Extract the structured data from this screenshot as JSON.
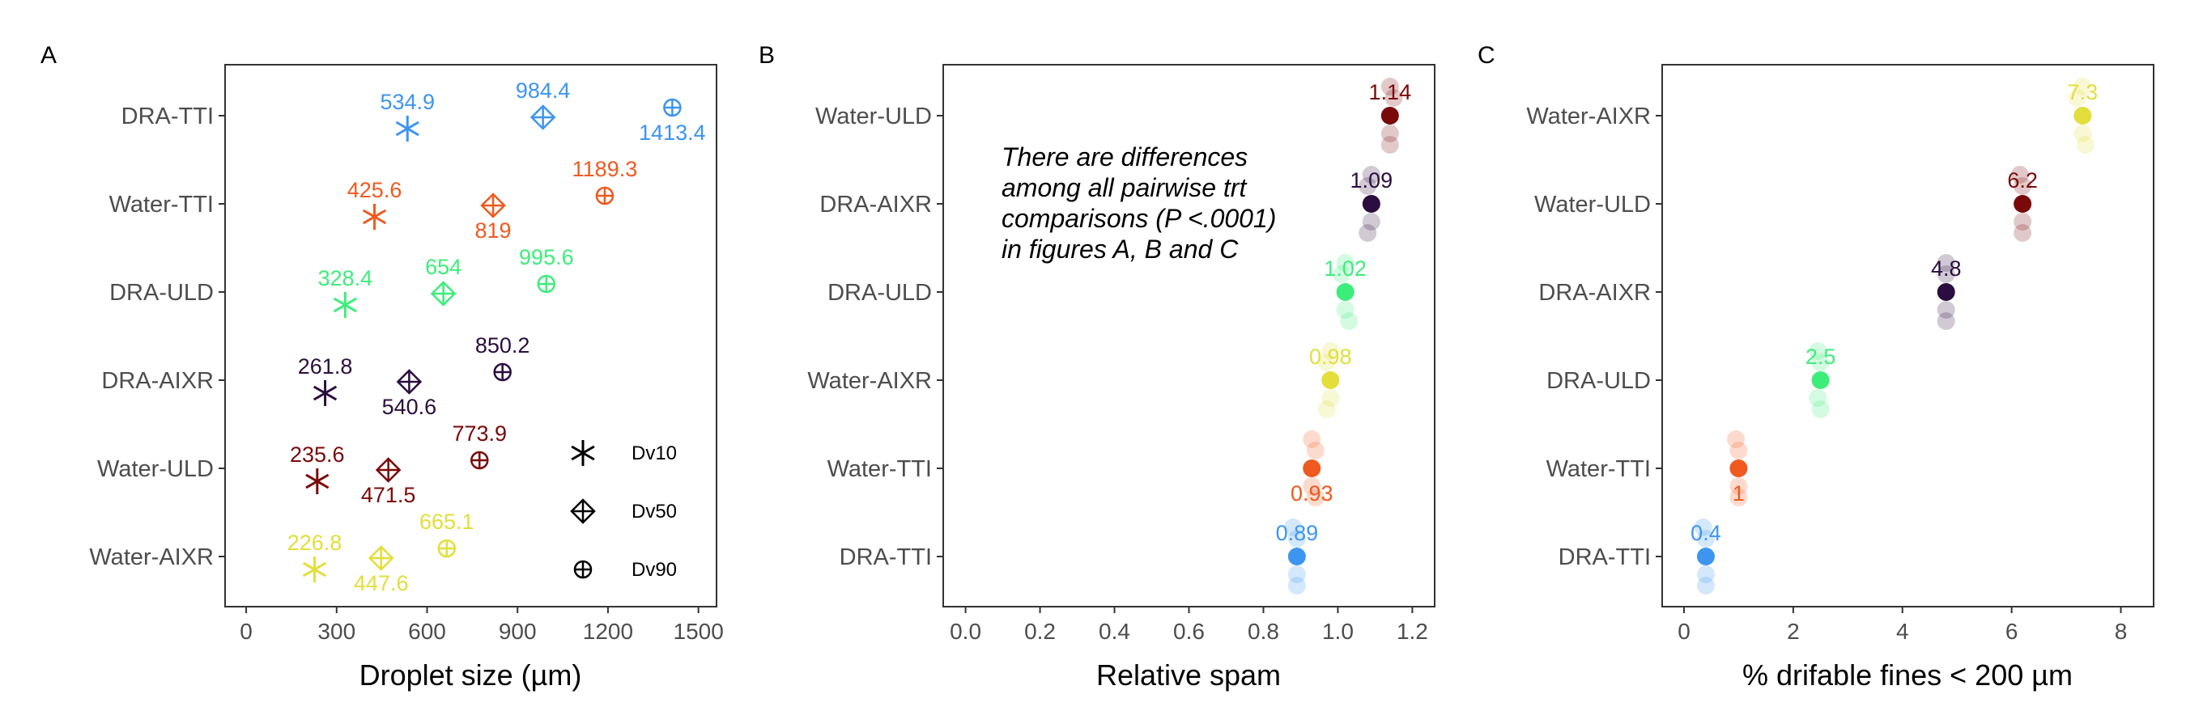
{
  "colors": {
    "DRA-TTI": "#3d95f0",
    "Water-TTI": "#f0591f",
    "DRA-ULD": "#3ded7a",
    "DRA-AIXR": "#2c0d3f",
    "Water-ULD": "#7a0a0a",
    "Water-AIXR": "#e3de3a"
  },
  "panels": [
    "A",
    "B",
    "C"
  ],
  "note": [
    "There are differences",
    "among all pairwise trt",
    "comparisons (P <.0001)",
    "in figures A, B and C"
  ],
  "chart_data": [
    {
      "panel": "A",
      "type": "scatter",
      "xlabel": "Droplet size (µm)",
      "xlim": [
        -70,
        1560
      ],
      "xticks": [
        0,
        300,
        600,
        900,
        1200,
        1500
      ],
      "categories": [
        "DRA-TTI",
        "Water-TTI",
        "DRA-ULD",
        "DRA-AIXR",
        "Water-ULD",
        "Water-AIXR"
      ],
      "series": [
        {
          "name": "Dv10",
          "symbol": "asterisk",
          "values": [
            534.9,
            425.6,
            328.4,
            261.8,
            235.6,
            226.8
          ],
          "labels": [
            "534.9",
            "425.6",
            "328.4",
            "261.8",
            "235.6",
            "226.8"
          ]
        },
        {
          "name": "Dv50",
          "symbol": "diamond-plus",
          "values": [
            984.4,
            819,
            654,
            540.6,
            471.5,
            447.6
          ],
          "labels": [
            "984.4",
            "819",
            "654",
            "540.6",
            "471.5",
            "447.6"
          ]
        },
        {
          "name": "Dv90",
          "symbol": "circle-plus",
          "values": [
            1413.4,
            1189.3,
            995.6,
            850.2,
            773.9,
            665.1
          ],
          "labels": [
            "1413.4",
            "1189.3",
            "995.6",
            "850.2",
            "773.9",
            "665.1"
          ]
        }
      ],
      "legend": [
        "Dv10",
        "Dv50",
        "Dv90"
      ],
      "grid": false
    },
    {
      "panel": "B",
      "type": "scatter",
      "xlabel": "Relative spam",
      "xlim": [
        -0.06,
        1.26
      ],
      "xticks": [
        0.0,
        0.2,
        0.4,
        0.6,
        0.8,
        1.0,
        1.2
      ],
      "xtick_labels": [
        "0.0",
        "0.2",
        "0.4",
        "0.6",
        "0.8",
        "1.0",
        "1.2"
      ],
      "categories": [
        "Water-ULD",
        "DRA-AIXR",
        "DRA-ULD",
        "Water-AIXR",
        "Water-TTI",
        "DRA-TTI"
      ],
      "means": [
        1.14,
        1.09,
        1.02,
        0.98,
        0.93,
        0.89
      ],
      "labels": [
        "1.14",
        "1.09",
        "1.02",
        "0.98",
        "0.93",
        "0.89"
      ],
      "replicates": [
        [
          1.14,
          1.15,
          1.14,
          1.14
        ],
        [
          1.09,
          1.08,
          1.09,
          1.08
        ],
        [
          1.02,
          1.01,
          1.02,
          1.03
        ],
        [
          0.98,
          0.97,
          0.98,
          0.97
        ],
        [
          0.93,
          0.94,
          0.93,
          0.94
        ],
        [
          0.88,
          0.89,
          0.89,
          0.89
        ]
      ],
      "grid": false
    },
    {
      "panel": "C",
      "type": "scatter",
      "xlabel": "% drifable fines < 200 µm",
      "xlim": [
        -0.4,
        8.6
      ],
      "xticks": [
        0,
        2,
        4,
        6,
        8
      ],
      "categories": [
        "Water-AIXR",
        "Water-ULD",
        "DRA-AIXR",
        "DRA-ULD",
        "Water-TTI",
        "DRA-TTI"
      ],
      "means": [
        7.3,
        6.2,
        4.8,
        2.5,
        1,
        0.4
      ],
      "labels": [
        "7.3",
        "6.2",
        "4.8",
        "2.5",
        "1",
        "0.4"
      ],
      "replicates": [
        [
          7.3,
          7.2,
          7.3,
          7.35
        ],
        [
          6.15,
          6.2,
          6.2,
          6.2
        ],
        [
          4.8,
          4.8,
          4.8,
          4.8
        ],
        [
          2.45,
          2.5,
          2.45,
          2.5
        ],
        [
          0.95,
          1.0,
          1.0,
          1.0
        ],
        [
          0.35,
          0.4,
          0.4,
          0.4
        ]
      ],
      "grid": false
    }
  ]
}
